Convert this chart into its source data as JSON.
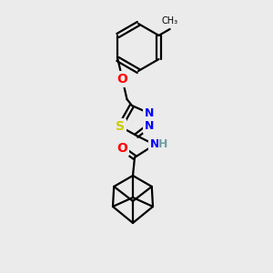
{
  "background_color": "#ebebeb",
  "bond_color": "#000000",
  "atom_colors": {
    "O": "#ff0000",
    "N": "#0000ff",
    "S": "#cccc00",
    "H": "#70a0a0",
    "C": "#000000"
  },
  "figsize": [
    3.0,
    3.0
  ],
  "dpi": 100
}
